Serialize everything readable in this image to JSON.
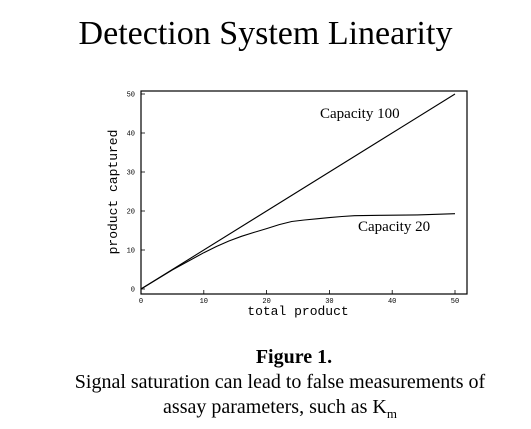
{
  "page": {
    "title": "Detection System Linearity",
    "figure_label": "Figure 1.",
    "caption_line1": "Signal saturation can lead to false measurements of",
    "caption_line2": "assay parameters, such as K",
    "caption_subscript": "m"
  },
  "chart_data": {
    "type": "line",
    "title": "Detection System Linearity",
    "xlabel": "total product",
    "ylabel": "product captured",
    "xlim": [
      0,
      50
    ],
    "ylim": [
      0,
      50
    ],
    "x_ticks": [
      0,
      10,
      20,
      30,
      40,
      50
    ],
    "y_ticks": [
      0,
      10,
      20,
      30,
      40,
      50
    ],
    "grid": false,
    "series": [
      {
        "name": "Capacity 100",
        "color": "#000000",
        "points": [
          [
            0,
            0
          ],
          [
            50,
            50
          ]
        ]
      },
      {
        "name": "Capacity 20",
        "color": "#000000",
        "points": [
          [
            0,
            0
          ],
          [
            5,
            4.9
          ],
          [
            10,
            9.3
          ],
          [
            12,
            10.9
          ],
          [
            14,
            12.3
          ],
          [
            16,
            13.5
          ],
          [
            18,
            14.5
          ],
          [
            20,
            15.5
          ],
          [
            22,
            16.5
          ],
          [
            24,
            17.3
          ],
          [
            26,
            17.7
          ],
          [
            28,
            18.0
          ],
          [
            30,
            18.3
          ],
          [
            32,
            18.6
          ],
          [
            34,
            18.8
          ],
          [
            38,
            18.9
          ],
          [
            44,
            19.0
          ],
          [
            50,
            19.3
          ]
        ]
      }
    ]
  }
}
